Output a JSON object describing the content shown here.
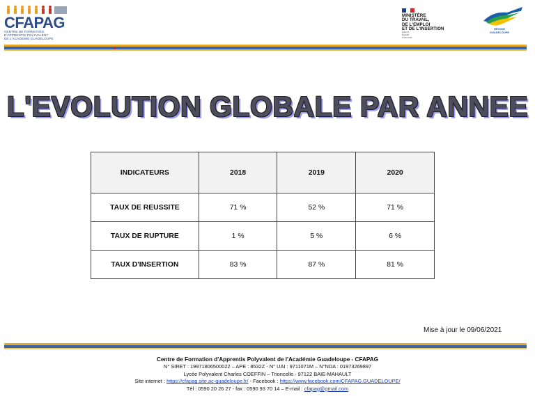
{
  "header": {
    "cfapag_logo": {
      "name": "CFAPAG",
      "subtitle": "CENTRE DE FORMATION\nD'APPRENTIS POLYVALENT\nDE L'ACADEMIE GUADELOUPE"
    },
    "ministry": {
      "name": "MINISTÈRE\nDU TRAVAIL,\nDE L'EMPLOI\nET DE L'INSERTION",
      "motto": "Liberté\nÉgalité\nFraternité"
    },
    "region_logo": {
      "label": "RÉGION\nGUADELOUPE"
    }
  },
  "title": "L'EVOLUTION GLOBALE PAR ANNEE",
  "table": {
    "headers": [
      "INDICATEURS",
      "2018",
      "2019",
      "2020"
    ],
    "rows": [
      {
        "label": "TAUX DE REUSSITE",
        "values": [
          "71 %",
          "52 %",
          "71 %"
        ]
      },
      {
        "label": "TAUX DE RUPTURE",
        "values": [
          "1 %",
          "5 %",
          "6 %"
        ]
      },
      {
        "label": "TAUX D'INSERTION",
        "values": [
          "83 %",
          "87 %",
          "81 %"
        ]
      }
    ]
  },
  "update_note": "Mise à jour le 09/06/2021",
  "footer": {
    "org_name": "Centre de Formation d'Apprentis Polyvalent de l'Académie Guadeloupe - CFAPAG",
    "ids": "N° SIRET : 19971806500022 – APE : 8532Z - N° UAI : 9711071M – N°NDA : 01973269897",
    "address": "Lycée Polyvalent Charles COEFFIN – Trioncelle - 97122 BAIE-MAHAULT",
    "site_prefix": "Site internet : ",
    "site_url": "https://cfapag.site.ac-guadeloupe.fr/",
    "facebook_prefix": " - Facebook : ",
    "facebook_url": "https://www.facebook.com/CFAPAG.GUADELOUPE/",
    "contact_prefix": "Tél : 0590 20 26 27 - fax : 0590 93 70 14 – E-mail : ",
    "email": "cfapag@gmail.com"
  },
  "colors": {
    "stripe_orange": "#e8a928",
    "stripe_blue": "#3b65a6",
    "title_fill": "#4d4d5e",
    "title_shadow": "#9c9cf2",
    "link": "#1b3fb6"
  }
}
